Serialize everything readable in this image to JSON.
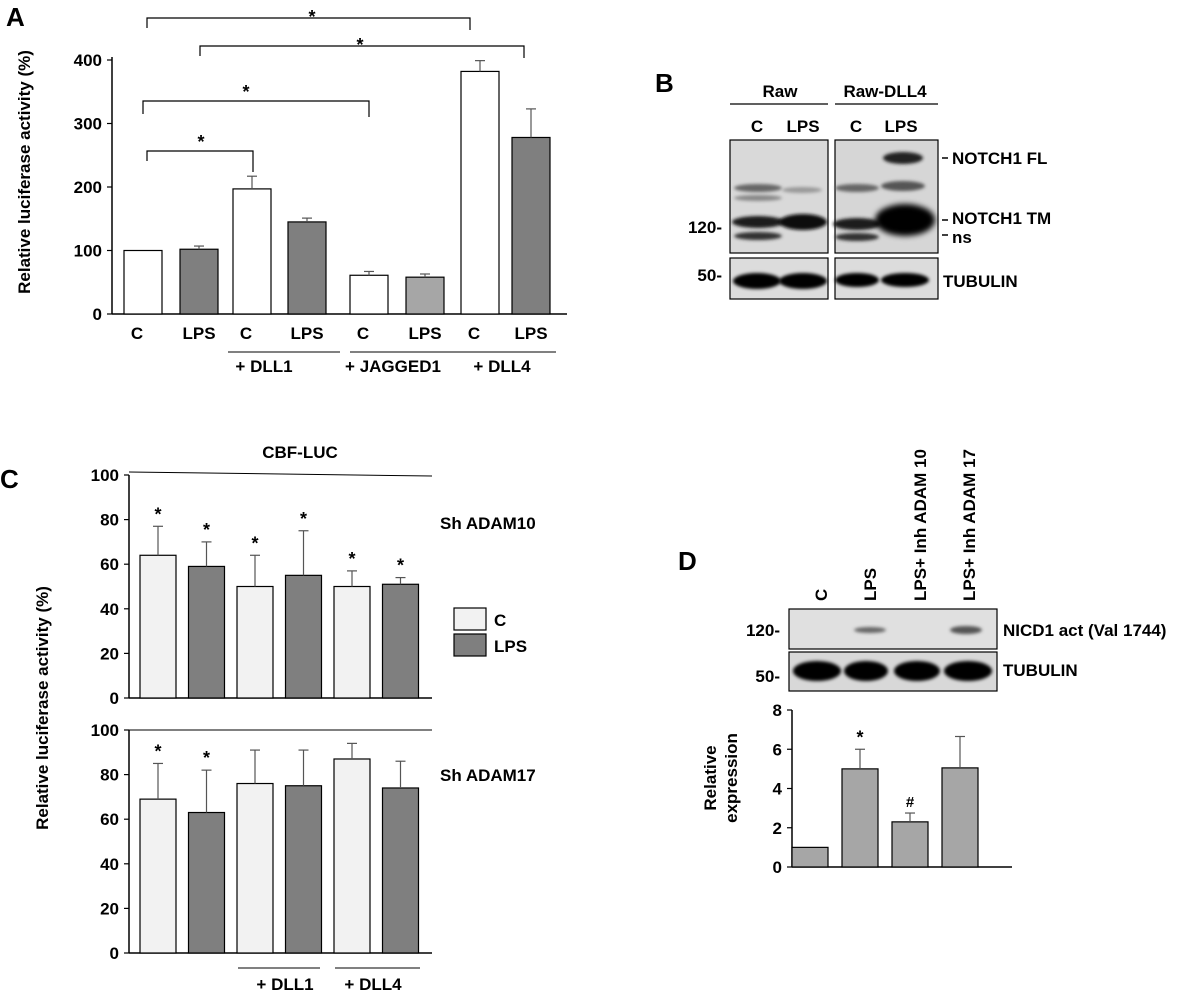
{
  "panels": {
    "A": {
      "letter": "A"
    },
    "B": {
      "letter": "B"
    },
    "C": {
      "letter": "C"
    },
    "D": {
      "letter": "D"
    }
  },
  "colors": {
    "white_bar": "#ffffff",
    "dark_bar": "#7f7f7f",
    "light_bar": "#f2f2f2",
    "mid_bar": "#a6a6a6"
  },
  "chart_data": [
    {
      "panel": "A",
      "type": "bar",
      "ylabel": "Relative luciferase activity (%)",
      "ylim": [
        0,
        400
      ],
      "yticks": [
        "0",
        "100",
        "200",
        "300",
        "400"
      ],
      "categories": [
        "C",
        "LPS",
        "C",
        "LPS",
        "C",
        "LPS",
        "C",
        "LPS"
      ],
      "values": [
        100,
        102,
        197,
        145,
        61,
        58,
        382,
        278
      ],
      "errors": [
        0,
        5,
        20,
        6,
        6,
        5,
        17,
        45
      ],
      "fills": [
        "white",
        "dark",
        "white",
        "dark",
        "white",
        "mid",
        "white",
        "dark"
      ],
      "groups": [
        "+ DLL1",
        "+ JAGGED1",
        "+ DLL4"
      ],
      "significance": "*"
    },
    {
      "panel": "C",
      "type": "bar",
      "header": "CBF-LUC",
      "ylabel": "Relative luciferase activity (%)",
      "legend": [
        "C",
        "LPS"
      ],
      "groups": [
        "+ DLL1",
        "+ DLL4"
      ],
      "subplots": [
        {
          "label": "Sh ADAM10",
          "ylim": [
            0,
            100
          ],
          "yticks": [
            "0",
            "20",
            "40",
            "60",
            "80",
            "100"
          ],
          "values": [
            64,
            59,
            50,
            55,
            50,
            51
          ],
          "errors": [
            13,
            11,
            14,
            20,
            7,
            3
          ],
          "stars": [
            true,
            true,
            true,
            true,
            true,
            true
          ]
        },
        {
          "label": "Sh ADAM17",
          "ylim": [
            0,
            100
          ],
          "yticks": [
            "0",
            "20",
            "40",
            "60",
            "80",
            "100"
          ],
          "values": [
            69,
            63,
            76,
            75,
            87,
            74
          ],
          "errors": [
            16,
            19,
            15,
            16,
            7,
            12
          ],
          "stars": [
            true,
            true,
            false,
            false,
            false,
            false
          ]
        }
      ]
    },
    {
      "panel": "D",
      "type": "bar",
      "ylabel": "Relative expression",
      "ylim": [
        0,
        8
      ],
      "yticks": [
        "0",
        "2",
        "4",
        "6",
        "8"
      ],
      "categories": [
        "C",
        "LPS",
        "LPS+ Inh ADAM 10",
        "LPS+ Inh ADAM 17"
      ],
      "values": [
        1,
        5,
        2.3,
        5.05
      ],
      "errors": [
        0,
        1,
        0.45,
        1.6
      ],
      "marks": [
        "",
        "*",
        "#",
        ""
      ]
    }
  ],
  "blotB": {
    "group_labels": [
      "Raw",
      "Raw-DLL4"
    ],
    "lanes": [
      "C",
      "LPS",
      "C",
      "LPS"
    ],
    "bands": [
      "NOTCH1 FL",
      "NOTCH1 TM",
      "ns",
      "TUBULIN"
    ],
    "markers": [
      "120-",
      "50-"
    ]
  },
  "blotD": {
    "bands": [
      "NICD1 act (Val 1744)",
      "TUBULIN"
    ],
    "markers": [
      "120-",
      "50-"
    ]
  }
}
